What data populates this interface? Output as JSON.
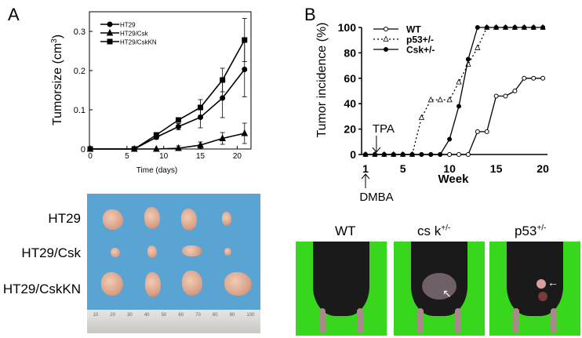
{
  "panels": {
    "a": "A",
    "b": "B"
  },
  "chart_data": [
    {
      "type": "line",
      "xlabel": "Time (days)",
      "ylabel": "Tumorsize (cm",
      "ylabel_sup": "3",
      "ylabel_end": ")",
      "xlim": [
        0,
        21
      ],
      "ylim": [
        0,
        0.33
      ],
      "xticks": [
        0,
        5,
        10,
        15,
        20
      ],
      "yticks": [
        {
          "v": 0,
          "label": "0"
        },
        {
          "v": 0.1,
          "label": "0.1"
        },
        {
          "v": 0.2,
          "label": "0.2"
        },
        {
          "v": 0.3,
          "label": "0.3"
        }
      ],
      "legend": "top-left",
      "x": [
        0,
        6,
        9,
        12,
        15,
        18,
        21
      ],
      "series": [
        {
          "name": "HT29",
          "marker": "circle",
          "values": [
            0,
            0,
            0.03,
            0.057,
            0.081,
            0.13,
            0.203
          ],
          "errors": [
            0,
            0,
            0.005,
            0.008,
            0.027,
            0.05,
            0.07
          ]
        },
        {
          "name": "HT29/Csk",
          "marker": "triangle",
          "values": [
            0,
            0,
            0,
            0.002,
            0.01,
            0.027,
            0.04
          ],
          "errors": [
            0,
            0,
            0,
            0.006,
            0.008,
            0.015,
            0.026
          ]
        },
        {
          "name": "HT29/CskKN",
          "marker": "square",
          "values": [
            0,
            0,
            0.036,
            0.074,
            0.106,
            0.176,
            0.278
          ],
          "errors": [
            0,
            0,
            0.004,
            0.005,
            0.02,
            0.03,
            0.055
          ]
        }
      ]
    },
    {
      "type": "line",
      "xlabel": "Week",
      "ylabel": "Tumor incidence (%)",
      "xlim": [
        1,
        20
      ],
      "ylim": [
        0,
        100
      ],
      "xticks": [
        1,
        5,
        10,
        15,
        20
      ],
      "yticks": [
        {
          "v": 0,
          "label": "0"
        },
        {
          "v": 20,
          "label": "20"
        },
        {
          "v": 40,
          "label": "40"
        },
        {
          "v": 60,
          "label": "60"
        },
        {
          "v": 80,
          "label": "80"
        },
        {
          "v": 100,
          "label": "100"
        }
      ],
      "legend": "top-left",
      "annotations": [
        {
          "text": "TPA",
          "x": 2,
          "arrow": "down"
        },
        {
          "text": "DMBA",
          "x": 1,
          "arrow": "up"
        }
      ],
      "x": [
        1,
        2,
        3,
        4,
        5,
        6,
        7,
        8,
        9,
        10,
        11,
        12,
        13,
        14,
        15,
        16,
        17,
        18,
        19,
        20
      ],
      "series": [
        {
          "name": "WT",
          "marker": "open-circle",
          "line": "solid",
          "values": [
            0,
            0,
            0,
            0,
            0,
            0,
            0,
            0,
            0,
            0,
            0,
            0,
            18,
            18,
            46,
            46,
            50,
            60,
            60,
            60
          ]
        },
        {
          "name": "p53+/-",
          "marker": "open-triangle",
          "line": "dotted",
          "values": [
            0,
            0,
            0,
            0,
            0,
            0,
            29,
            43,
            43,
            43,
            57,
            71,
            84,
            100,
            100,
            100,
            100,
            100,
            100,
            100
          ]
        },
        {
          "name": "Csk+/-",
          "marker": "filled-circle",
          "line": "solid",
          "values": [
            0,
            0,
            0,
            0,
            0,
            0,
            0,
            0,
            0,
            12,
            38,
            75,
            100,
            100,
            100,
            100,
            100,
            100,
            100,
            100
          ]
        }
      ]
    }
  ],
  "photo_a": {
    "rows": [
      "HT29",
      "HT29/Csk",
      "HT29/CskKN"
    ],
    "ruler": [
      "10",
      "20",
      "30",
      "40",
      "50",
      "60",
      "70",
      "80",
      "90",
      "100"
    ],
    "background": "#5aa4d4"
  },
  "photo_b": {
    "labels": [
      {
        "base": "WT",
        "sup": ""
      },
      {
        "base": "cs k",
        "sup": "+/-"
      },
      {
        "base": "p53",
        "sup": "+/-"
      }
    ],
    "background": "#39d61e"
  }
}
